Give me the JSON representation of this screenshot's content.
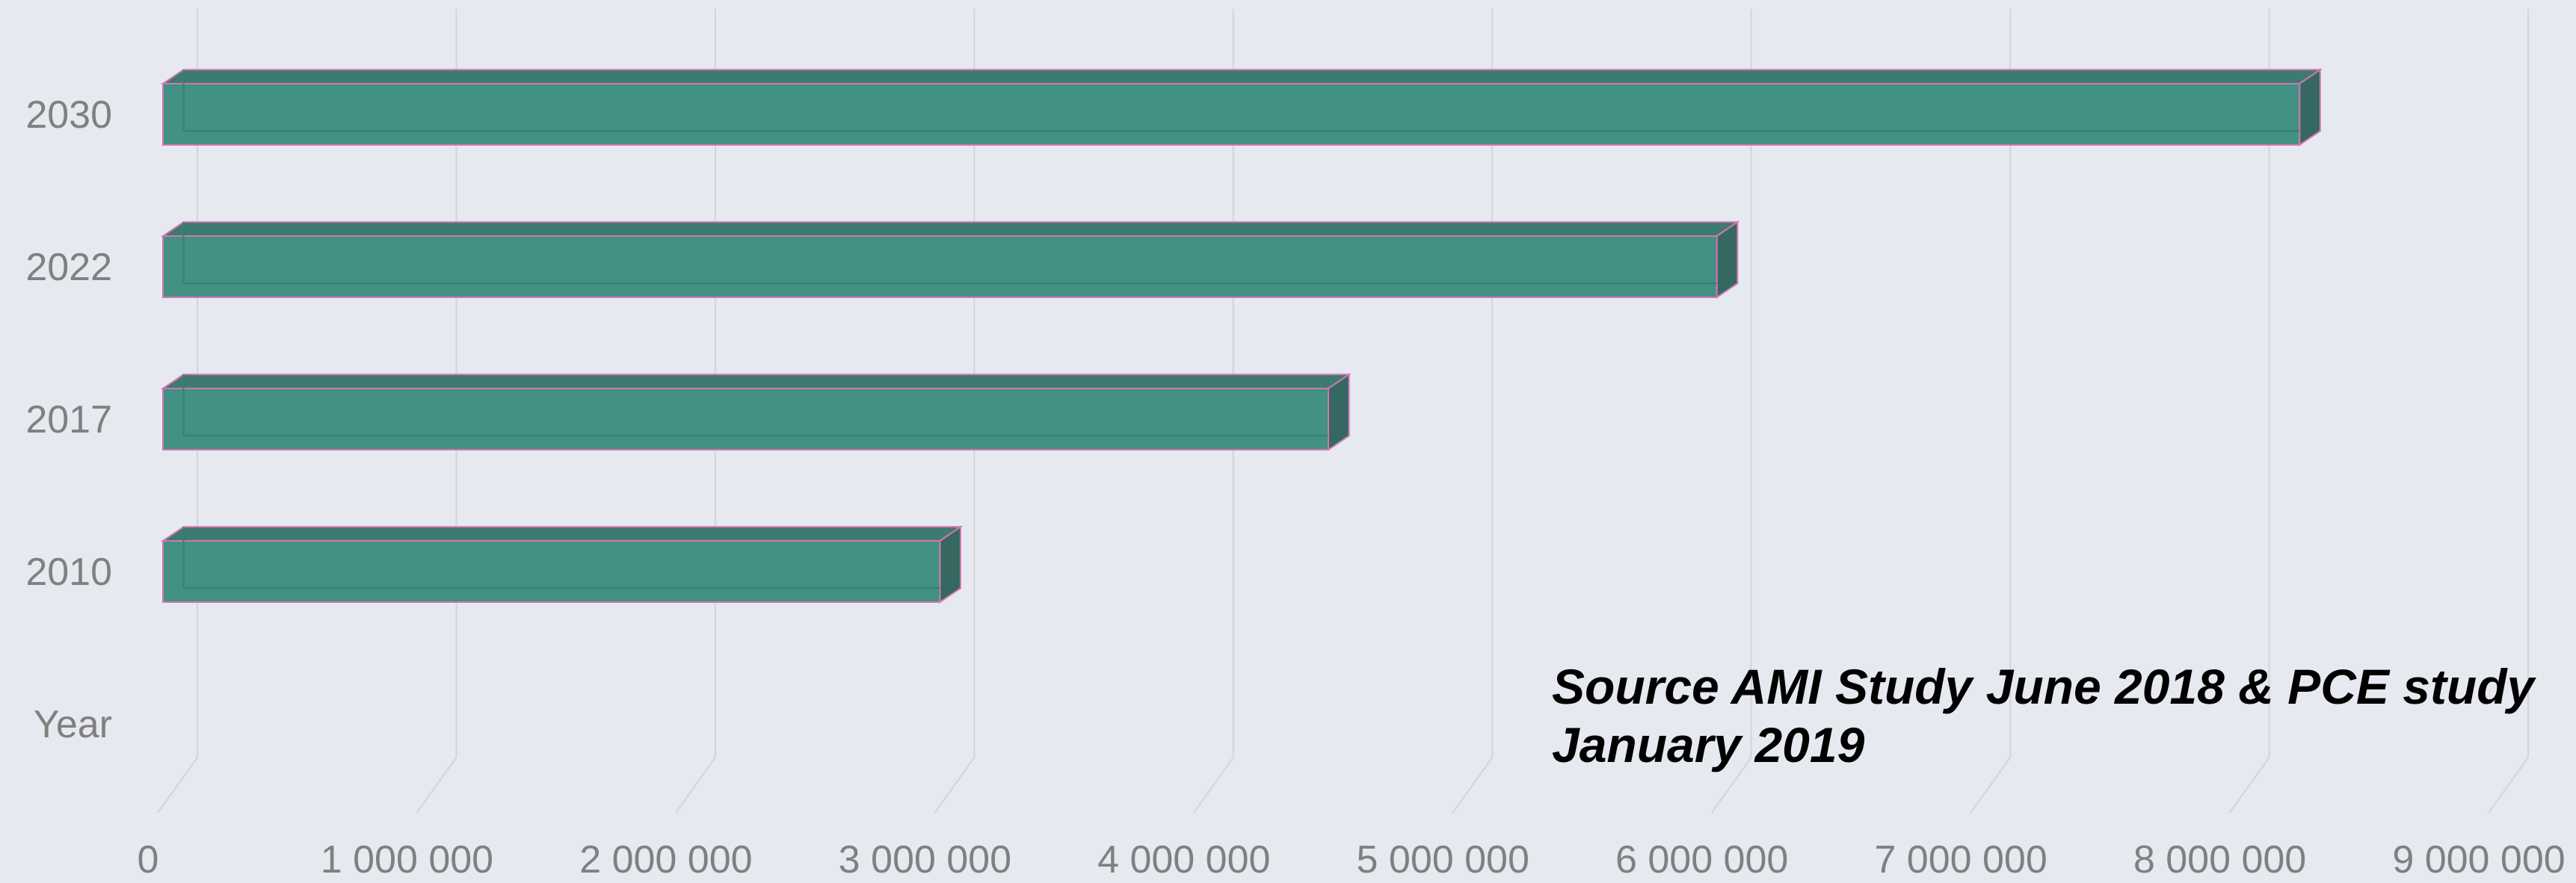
{
  "chart_data": {
    "type": "bar",
    "orientation": "horizontal",
    "style": "3d",
    "categories": [
      "2010",
      "2017",
      "2022",
      "2030"
    ],
    "category_axis_label": "Year",
    "values": [
      3000000,
      4500000,
      6000000,
      8250000
    ],
    "xlim": [
      0,
      9000000
    ],
    "x_ticks": [
      "0",
      "1 000 000",
      "2 000 000",
      "3 000 000",
      "4 000 000",
      "5 000 000",
      "6 000 000",
      "7 000 000",
      "8 000 000",
      "9 000 000"
    ],
    "annotation": "Source AMI Study June 2018 & PCE study January 2019",
    "grid": true,
    "legend": "none",
    "colors": {
      "background": "#e6e9f0",
      "bar_front": "#429183",
      "bar_top": "#3c7a72",
      "bar_side": "#346860",
      "bar_edge": "#d774b4",
      "grid": "#d2d4d8",
      "label": "#808080"
    }
  }
}
